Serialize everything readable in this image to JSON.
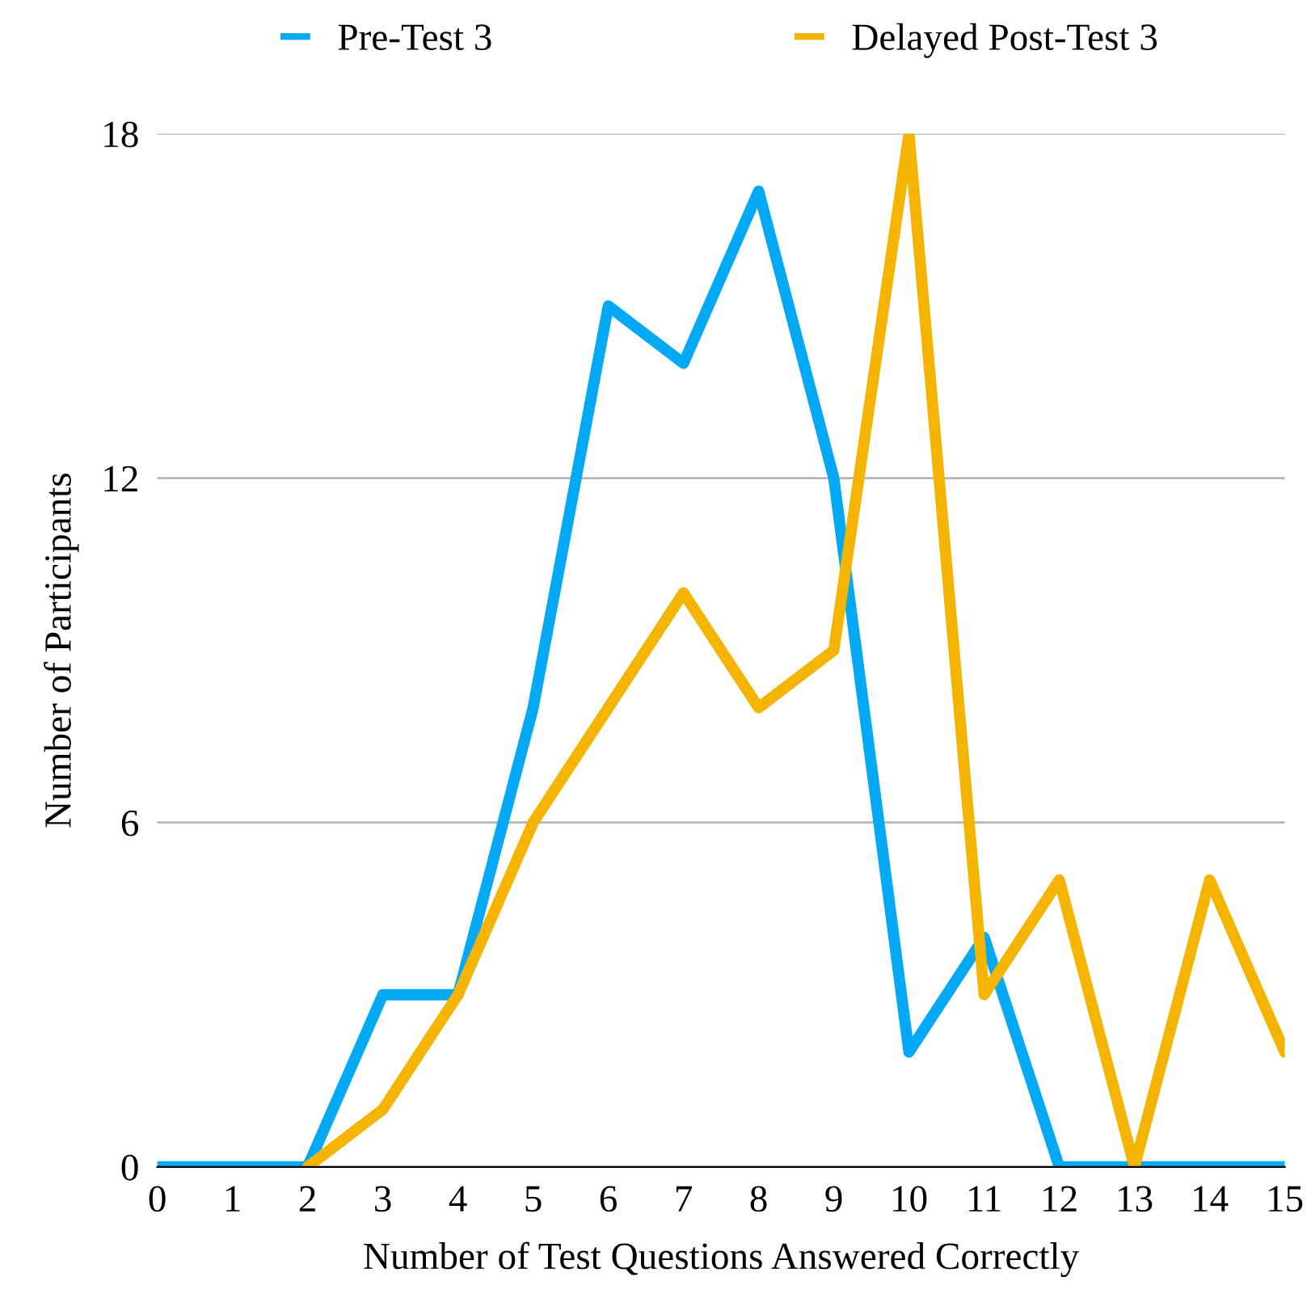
{
  "chart_data": {
    "type": "line",
    "xlabel": "Number of Test Questions Answered Correctly",
    "ylabel": "Number of Participants",
    "x": [
      0,
      1,
      2,
      3,
      4,
      5,
      6,
      7,
      8,
      9,
      10,
      11,
      12,
      13,
      14,
      15
    ],
    "series": [
      {
        "name": "Pre-Test 3",
        "color": "#03a9f4",
        "values": [
          0,
          0,
          0,
          3,
          3,
          8,
          15,
          14,
          17,
          12,
          2,
          4,
          0,
          0,
          0,
          0
        ]
      },
      {
        "name": "Delayed Post-Test 3",
        "color": "#f4b400",
        "values": [
          null,
          null,
          0,
          1,
          3,
          6,
          8,
          10,
          8,
          9,
          18,
          3,
          5,
          0,
          5,
          2
        ]
      }
    ],
    "xlim": [
      0,
      15
    ],
    "xticks": [
      0,
      1,
      2,
      3,
      4,
      5,
      6,
      7,
      8,
      9,
      10,
      11,
      12,
      13,
      14,
      15
    ],
    "ylim": [
      0,
      18
    ],
    "yticks": [
      0,
      6,
      12,
      18
    ],
    "grid": "y",
    "legend": "top",
    "marker": "none",
    "line_style": "solid"
  }
}
